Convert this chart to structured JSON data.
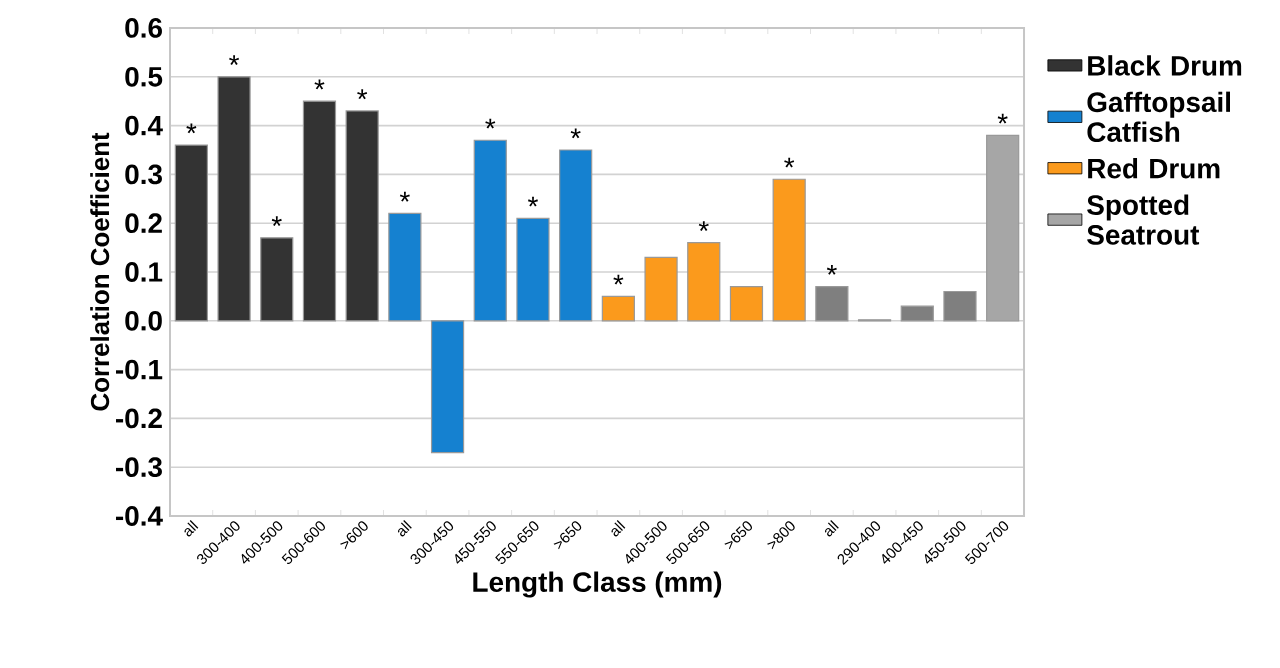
{
  "chart_data": {
    "type": "bar",
    "xlabel": "Length Class (mm)",
    "ylabel": "Correlation Coefficient",
    "categories": [
      "all",
      "300-400",
      "400-500",
      "500-600",
      ">600",
      "all",
      "300-450",
      "450-550",
      "550-650",
      ">650",
      "all",
      "400-500",
      "500-650",
      ">650",
      ">800",
      "all",
      "290-400",
      "400-450",
      "450-500",
      "500-700"
    ],
    "series": [
      {
        "name": "Black Drum",
        "color": "#333333",
        "values": [
          0.36,
          0.5,
          0.17,
          0.45,
          0.43,
          null,
          null,
          null,
          null,
          null,
          null,
          null,
          null,
          null,
          null,
          null,
          null,
          null,
          null,
          null
        ],
        "value_labels": [
          "*",
          "*",
          "*",
          "*",
          "*",
          null,
          null,
          null,
          null,
          null,
          null,
          null,
          null,
          null,
          null,
          null,
          null,
          null,
          null,
          null
        ]
      },
      {
        "name": "Gafftopsail Catfish",
        "color": "#1581d0",
        "values": [
          null,
          null,
          null,
          null,
          null,
          0.22,
          -0.27,
          0.37,
          0.21,
          0.35,
          null,
          null,
          null,
          null,
          null,
          null,
          null,
          null,
          null,
          null
        ],
        "value_labels": [
          null,
          null,
          null,
          null,
          null,
          "*",
          null,
          "*",
          "*",
          "*",
          null,
          null,
          null,
          null,
          null,
          null,
          null,
          null,
          null,
          null
        ]
      },
      {
        "name": "Red Drum",
        "color": "#fb9a1c",
        "values": [
          null,
          null,
          null,
          null,
          null,
          null,
          null,
          null,
          null,
          null,
          0.05,
          0.13,
          0.16,
          0.07,
          0.29,
          null,
          null,
          null,
          null,
          null
        ],
        "value_labels": [
          null,
          null,
          null,
          null,
          null,
          null,
          null,
          null,
          null,
          null,
          "*",
          null,
          "*",
          null,
          "*",
          null,
          null,
          null,
          null,
          null
        ]
      },
      {
        "name": "Spotted Seatrout",
        "color": "#a6a6a6",
        "colors": [
          null,
          null,
          null,
          null,
          null,
          null,
          null,
          null,
          null,
          null,
          null,
          null,
          null,
          null,
          null,
          "#7f7f7f",
          "#7f7f7f",
          "#7f7f7f",
          "#7f7f7f",
          "#a6a6a6"
        ],
        "values": [
          null,
          null,
          null,
          null,
          null,
          null,
          null,
          null,
          null,
          null,
          null,
          null,
          null,
          null,
          null,
          0.07,
          0.002,
          0.03,
          0.06,
          0.38
        ],
        "value_labels": [
          null,
          null,
          null,
          null,
          null,
          null,
          null,
          null,
          null,
          null,
          null,
          null,
          null,
          null,
          null,
          "*",
          null,
          null,
          null,
          "*"
        ]
      }
    ],
    "ylim": [
      -0.4,
      0.6
    ],
    "yticks": [
      {
        "value": -0.4,
        "label": "-0.4"
      },
      {
        "value": -0.3,
        "label": "-0.3"
      },
      {
        "value": -0.2,
        "label": "-0.2"
      },
      {
        "value": -0.1,
        "label": "-0.1"
      },
      {
        "value": 0,
        "label": "0.0"
      },
      {
        "value": 0.1,
        "label": "0.1"
      },
      {
        "value": 0.2,
        "label": "0.2"
      },
      {
        "value": 0.3,
        "label": "0.3"
      },
      {
        "value": 0.4,
        "label": "0.4"
      },
      {
        "value": 0.5,
        "label": "0.5"
      },
      {
        "value": 0.6,
        "label": "0.6"
      }
    ],
    "grid": "y",
    "legend": "right"
  }
}
